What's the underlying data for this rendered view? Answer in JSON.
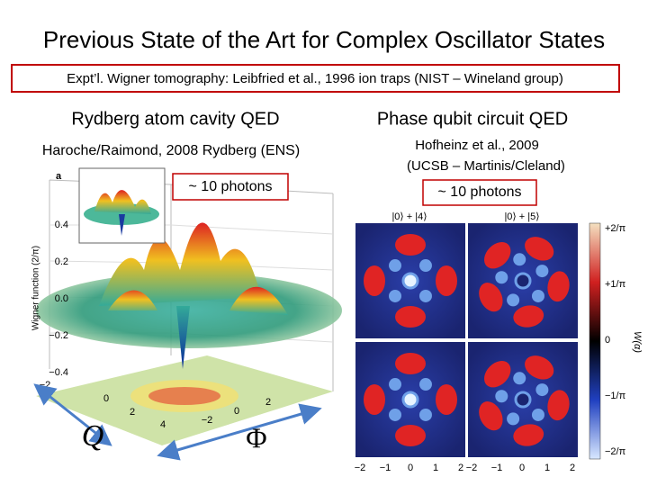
{
  "title": "Previous State of the Art for Complex Oscillator States",
  "banner": "Expt’l. Wigner tomography: Leibfried et al., 1996 ion traps (NIST – Wineland group)",
  "left": {
    "heading": "Rydberg atom cavity QED",
    "subheading": "Haroche/Raimond, 2008 Rydberg (ENS)",
    "callout": "~ 10 photons",
    "figure": {
      "panel_label": "a",
      "y_axis_label": "Wigner function (2/π)",
      "y_ticks": [
        "0.4",
        "0.2",
        "0.0",
        "−0.2",
        "−0.4"
      ],
      "x_ticks": [
        "−2",
        "0",
        "2",
        "4"
      ],
      "x2_ticks": [
        "−2",
        "0",
        "2"
      ]
    },
    "axis_labels": [
      "Q",
      "Φ"
    ]
  },
  "right": {
    "heading": "Phase qubit circuit QED",
    "subheading_lines": [
      "Hofheinz et al., 2009",
      "(UCSB – Martinis/Cleland)"
    ],
    "callout": "~ 10 photons",
    "figure": {
      "state_labels": [
        "|0⟩ + |4⟩",
        "|0⟩ + |5⟩"
      ],
      "colorbar_ticks": [
        "+2/π",
        "+1/π",
        "0",
        "−1/π",
        "−2/π"
      ],
      "colorbar_label": "W(α)",
      "x_ticks": [
        "−2",
        "−1",
        "0",
        "1",
        "2",
        "−2",
        "−1",
        "0",
        "1",
        "2"
      ]
    }
  }
}
